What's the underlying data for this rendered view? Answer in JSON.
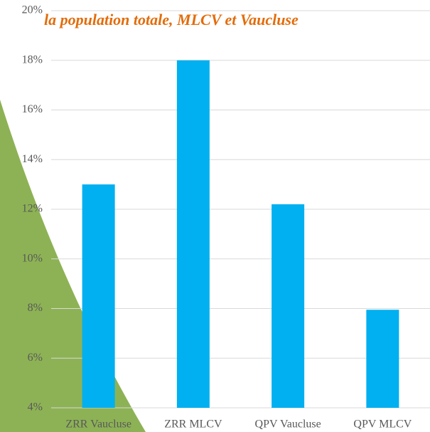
{
  "chart_data": {
    "type": "bar",
    "title": "la population totale, MLCV et Vaucluse",
    "categories": [
      "ZRR Vaucluse",
      "ZRR MLCV",
      "QPV Vaucluse",
      "QPV MLCV"
    ],
    "values": [
      13,
      18,
      12.2,
      7.95
    ],
    "color": "#00b0f0",
    "ylim": [
      4,
      20
    ],
    "yticks": [
      {
        "value": 4,
        "label": "4%"
      },
      {
        "value": 6,
        "label": "6%"
      },
      {
        "value": 8,
        "label": "8%"
      },
      {
        "value": 10,
        "label": "10%"
      },
      {
        "value": 12,
        "label": "12%"
      },
      {
        "value": 14,
        "label": "14%"
      },
      {
        "value": 16,
        "label": "16%"
      },
      {
        "value": 18,
        "label": "18%"
      },
      {
        "value": 20,
        "label": "20%"
      }
    ],
    "grid": true
  }
}
